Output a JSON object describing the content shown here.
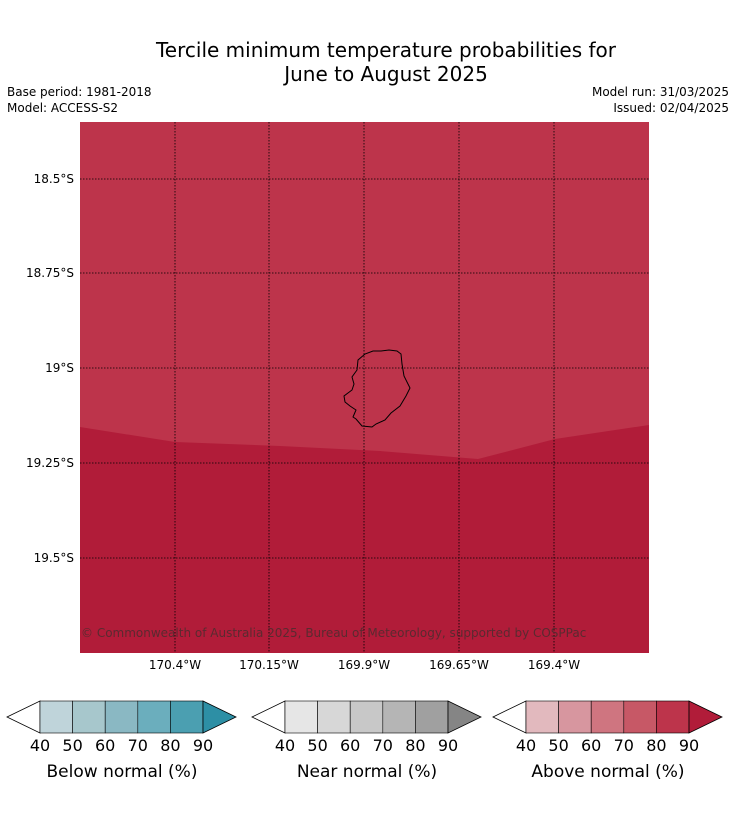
{
  "title_line1": "Tercile minimum temperature probabilities for",
  "title_line2": "June to August 2025",
  "base_period": "Base period: 1981-2018",
  "model": "Model: ACCESS-S2",
  "model_run": "Model run: 31/03/2025",
  "issued": "Issued: 02/04/2025",
  "copyright": "© Commonwealth of Australia 2025, Bureau of Meteorology, supported by COSPPac",
  "lat_labels": [
    "18.5°S",
    "18.75°S",
    "19°S",
    "19.25°S",
    "19.5°S"
  ],
  "lon_labels": [
    "170.4°W",
    "170.15°W",
    "169.9°W",
    "169.65°W",
    "169.4°W"
  ],
  "colors": {
    "above_80": "#bd344b",
    "above_90": "#b11c39",
    "coast": "#000000"
  },
  "legends": [
    {
      "caption": "Below normal (%)",
      "ticks": [
        "40",
        "50",
        "60",
        "70",
        "80",
        "90"
      ],
      "colors": [
        "#ffffff",
        "#bfd4da",
        "#a7c7cc",
        "#8ab8c3",
        "#6baebd",
        "#4b9fb1",
        "#2d8fa5"
      ]
    },
    {
      "caption": "Near normal (%)",
      "ticks": [
        "40",
        "50",
        "60",
        "70",
        "80",
        "90"
      ],
      "colors": [
        "#ffffff",
        "#e6e6e6",
        "#d7d7d7",
        "#c8c8c8",
        "#b5b5b5",
        "#a0a0a0",
        "#858585"
      ]
    },
    {
      "caption": "Above normal (%)",
      "ticks": [
        "40",
        "50",
        "60",
        "70",
        "80",
        "90"
      ],
      "colors": [
        "#ffffff",
        "#e2b9be",
        "#d7969f",
        "#cf7580",
        "#c75866",
        "#bd344b",
        "#b11c39"
      ]
    }
  ]
}
